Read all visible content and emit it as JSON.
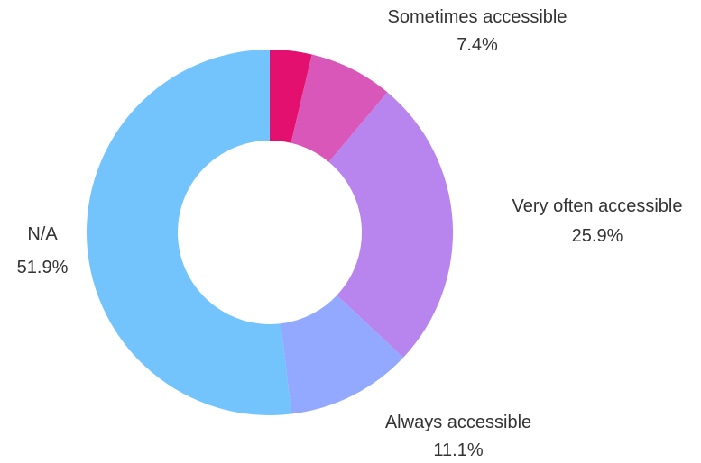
{
  "chart_data": {
    "type": "pie",
    "donut": true,
    "start_angle_deg": 0,
    "direction": "clockwise",
    "slices": [
      {
        "key": "unlabeled",
        "label": "",
        "value": 3.7,
        "display": "",
        "color": "#e4106f",
        "show_label": false
      },
      {
        "key": "sometimes",
        "label": "Sometimes accessible",
        "value": 7.4,
        "display": "7.4%",
        "color": "#d957b8",
        "show_label": true
      },
      {
        "key": "very-often",
        "label": "Very often accessible",
        "value": 25.9,
        "display": "25.9%",
        "color": "#b884ee",
        "show_label": true
      },
      {
        "key": "always",
        "label": "Always accessible",
        "value": 11.1,
        "display": "11.1%",
        "color": "#93a9ff",
        "show_label": true
      },
      {
        "key": "na",
        "label": "N/A",
        "value": 51.9,
        "display": "51.9%",
        "color": "#73c3fd",
        "show_label": true
      }
    ]
  }
}
